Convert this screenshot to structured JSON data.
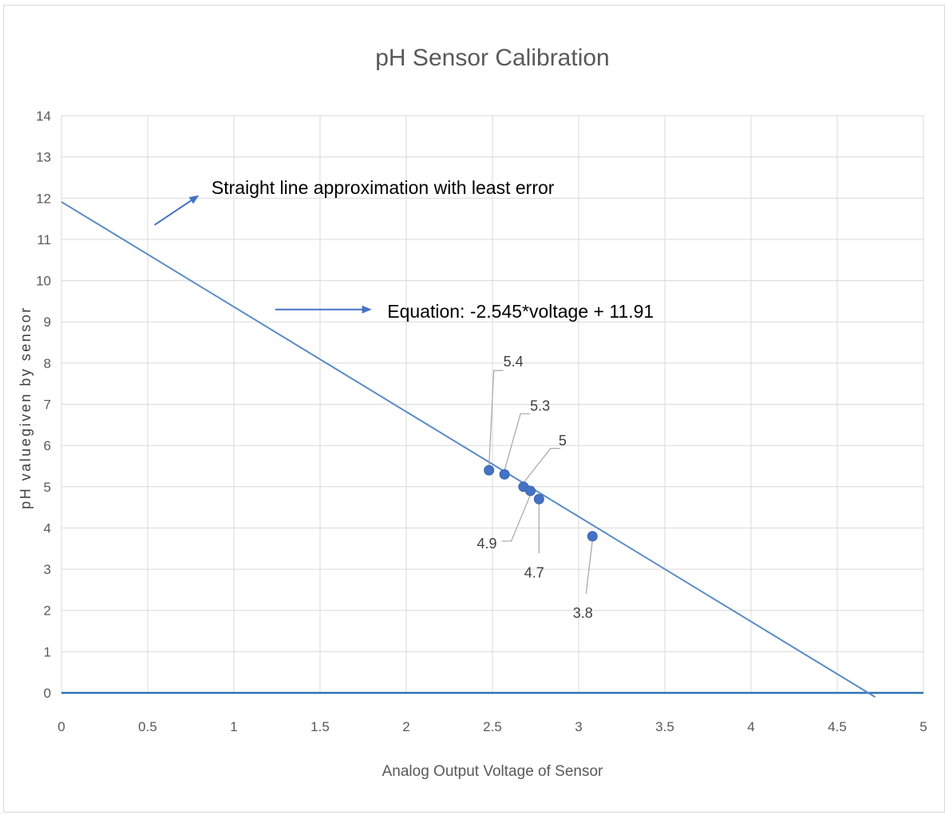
{
  "chart_data": {
    "type": "scatter",
    "title": "pH Sensor Calibration",
    "xlabel": "Analog Output Voltage of Sensor",
    "ylabel": "pH valuegiven by sensor",
    "xlim": [
      0,
      5
    ],
    "ylim": [
      0,
      14
    ],
    "x_ticks": [
      "0",
      "0.5",
      "1",
      "1.5",
      "2",
      "2.5",
      "3",
      "3.5",
      "4",
      "4.5",
      "5"
    ],
    "y_ticks": [
      "0",
      "1",
      "2",
      "3",
      "4",
      "5",
      "6",
      "7",
      "8",
      "9",
      "10",
      "11",
      "12",
      "13",
      "14"
    ],
    "grid": true,
    "legend": "none",
    "colors": {
      "points": "#4472c4",
      "line": "#5b8cc6",
      "axis": "#2e75b6",
      "grid": "#d9d9d9"
    },
    "points": [
      {
        "x": 2.48,
        "y": 5.4,
        "label": "5.4"
      },
      {
        "x": 2.57,
        "y": 5.3,
        "label": "5.3"
      },
      {
        "x": 2.68,
        "y": 5.0,
        "label": "5"
      },
      {
        "x": 2.72,
        "y": 4.9,
        "label": "4.9"
      },
      {
        "x": 2.77,
        "y": 4.7,
        "label": "4.7"
      },
      {
        "x": 3.08,
        "y": 3.8,
        "label": "3.8"
      }
    ],
    "trendline": {
      "slope": -2.545,
      "intercept": 11.91,
      "x_start": 0,
      "x_end": 4.72
    },
    "annotations": {
      "line_note": "Straight line approximation with least error",
      "equation": "Equation: -2.545*voltage + 11.91"
    }
  }
}
